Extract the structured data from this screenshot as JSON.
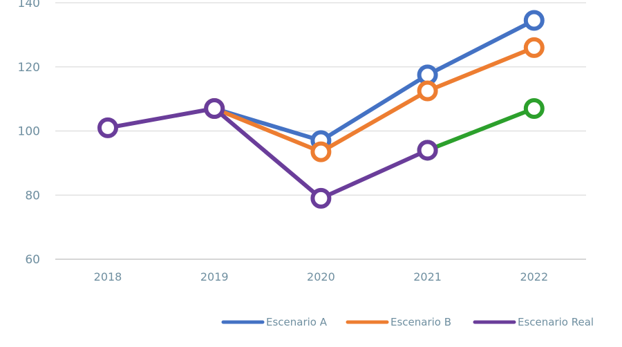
{
  "chart_data": {
    "type": "line",
    "title": "",
    "xlabel": "",
    "ylabel": "",
    "categories": [
      "2018",
      "2019",
      "2020",
      "2021",
      "2022"
    ],
    "ylim": [
      60,
      140
    ],
    "yticks": [
      60,
      80,
      100,
      120,
      140
    ],
    "grid": true,
    "legend_position": "bottom-right",
    "series": [
      {
        "name": "Escenario A",
        "color": "#4472c4",
        "values": [
          null,
          107,
          97,
          117.5,
          134.5
        ]
      },
      {
        "name": "Escenario B",
        "color": "#ed7d31",
        "values": [
          null,
          107,
          93.5,
          112.5,
          126
        ]
      },
      {
        "name": "",
        "color": "#2ca02c",
        "values": [
          null,
          null,
          null,
          94,
          107
        ],
        "show_in_legend": false
      },
      {
        "name": "Escenario Real",
        "color": "#6a3d9a",
        "values": [
          101,
          107,
          79,
          94,
          null
        ]
      }
    ]
  }
}
